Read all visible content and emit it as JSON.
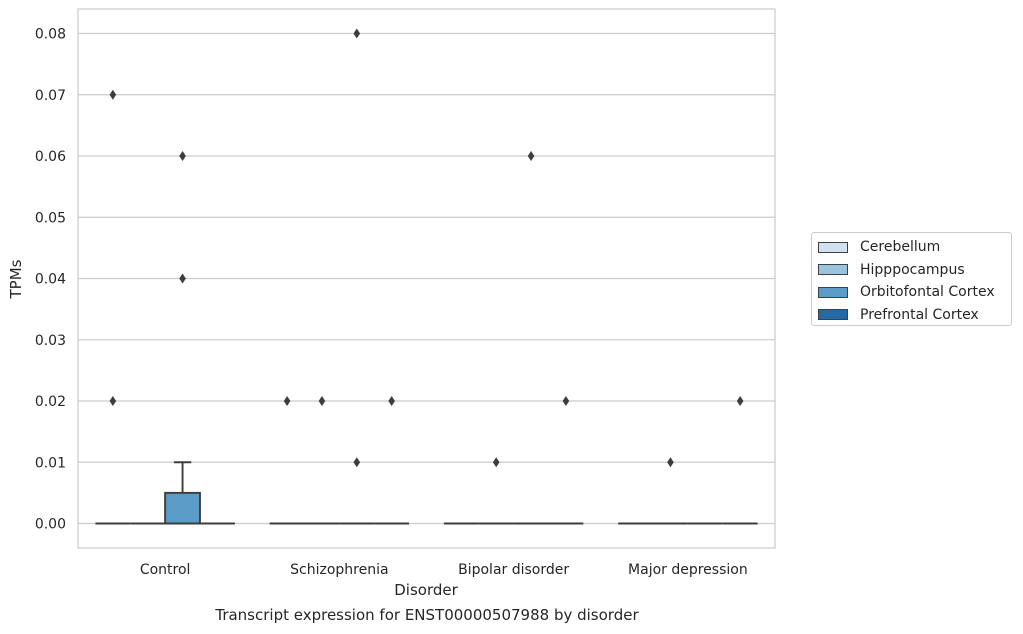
{
  "chart_data": {
    "type": "box",
    "xlabel": "Disorder",
    "ylabel": "TPMs",
    "ylim": [
      -0.004,
      0.084
    ],
    "yticks": [
      0.0,
      0.01,
      0.02,
      0.03,
      0.04,
      0.05,
      0.06,
      0.07,
      0.08
    ],
    "ytick_labels": [
      "0.00",
      "0.01",
      "0.02",
      "0.03",
      "0.04",
      "0.05",
      "0.06",
      "0.07",
      "0.08"
    ],
    "grid": "horizontal",
    "legend_position": "right",
    "categories": [
      "Control",
      "Schizophrenia",
      "Bipolar disorder",
      "Major depression"
    ],
    "series": [
      {
        "name": "Cerebellum",
        "color": "#d1e1ef",
        "boxes": [
          {
            "q1": 0,
            "median": 0,
            "q3": 0,
            "whisker_low": 0,
            "whisker_high": 0,
            "outliers": [
              0.07,
              0.02
            ]
          },
          {
            "q1": 0,
            "median": 0,
            "q3": 0,
            "whisker_low": 0,
            "whisker_high": 0,
            "outliers": [
              0.02
            ]
          },
          {
            "q1": 0,
            "median": 0,
            "q3": 0,
            "whisker_low": 0,
            "whisker_high": 0,
            "outliers": []
          },
          {
            "q1": 0,
            "median": 0,
            "q3": 0,
            "whisker_low": 0,
            "whisker_high": 0,
            "outliers": []
          }
        ]
      },
      {
        "name": "Hipppocampus",
        "color": "#9ac3dd",
        "boxes": [
          {
            "q1": 0,
            "median": 0,
            "q3": 0,
            "whisker_low": 0,
            "whisker_high": 0,
            "outliers": []
          },
          {
            "q1": 0,
            "median": 0,
            "q3": 0,
            "whisker_low": 0,
            "whisker_high": 0,
            "outliers": [
              0.02
            ]
          },
          {
            "q1": 0,
            "median": 0,
            "q3": 0,
            "whisker_low": 0,
            "whisker_high": 0,
            "outliers": [
              0.01
            ]
          },
          {
            "q1": 0,
            "median": 0,
            "q3": 0,
            "whisker_low": 0,
            "whisker_high": 0,
            "outliers": [
              0.01
            ]
          }
        ]
      },
      {
        "name": "Orbitofontal Cortex",
        "color": "#5a9bc8",
        "boxes": [
          {
            "q1": 0,
            "median": 0,
            "q3": 0.005,
            "whisker_low": 0,
            "whisker_high": 0.01,
            "outliers": [
              0.06,
              0.04
            ]
          },
          {
            "q1": 0,
            "median": 0,
            "q3": 0,
            "whisker_low": 0,
            "whisker_high": 0,
            "outliers": [
              0.08,
              0.01
            ]
          },
          {
            "q1": 0,
            "median": 0,
            "q3": 0,
            "whisker_low": 0,
            "whisker_high": 0,
            "outliers": [
              0.06
            ]
          },
          {
            "q1": 0,
            "median": 0,
            "q3": 0,
            "whisker_low": 0,
            "whisker_high": 0,
            "outliers": []
          }
        ]
      },
      {
        "name": "Prefrontal Cortex",
        "color": "#2769a6",
        "boxes": [
          {
            "q1": 0,
            "median": 0,
            "q3": 0,
            "whisker_low": 0,
            "whisker_high": 0,
            "outliers": []
          },
          {
            "q1": 0,
            "median": 0,
            "q3": 0,
            "whisker_low": 0,
            "whisker_high": 0,
            "outliers": [
              0.02
            ]
          },
          {
            "q1": 0,
            "median": 0,
            "q3": 0,
            "whisker_low": 0,
            "whisker_high": 0,
            "outliers": [
              0.02
            ]
          },
          {
            "q1": 0,
            "median": 0,
            "q3": 0,
            "whisker_low": 0,
            "whisker_high": 0,
            "outliers": [
              0.02
            ]
          }
        ]
      }
    ]
  },
  "caption": "Transcript expression for ENST00000507988 by disorder"
}
